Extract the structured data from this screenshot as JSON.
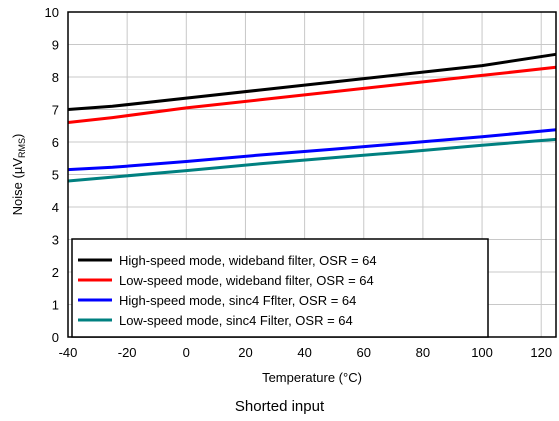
{
  "caption": "Shorted input",
  "chart_data": {
    "type": "line",
    "xlabel": "Temperature (°C)",
    "ylabel": {
      "prefix": "Noise (",
      "symbol": "µV",
      "subscript": "RMS",
      "suffix": ")"
    },
    "xlim": [
      -40,
      125
    ],
    "ylim": [
      0,
      10
    ],
    "xticks": [
      -40,
      -20,
      0,
      20,
      40,
      60,
      80,
      100,
      120
    ],
    "yticks": [
      0,
      1,
      2,
      3,
      4,
      5,
      6,
      7,
      8,
      9,
      10
    ],
    "grid": true,
    "legend_position": "bottom-left",
    "series": [
      {
        "name": "High-speed mode, wideband filter, OSR = 64",
        "color": "#000000",
        "x": [
          -40,
          -25,
          0,
          25,
          50,
          75,
          100,
          125
        ],
        "y": [
          7.0,
          7.1,
          7.35,
          7.6,
          7.85,
          8.1,
          8.35,
          8.7
        ]
      },
      {
        "name": "Low-speed mode, wideband filter, OSR = 64",
        "color": "#ff0000",
        "x": [
          -40,
          -25,
          0,
          25,
          50,
          75,
          100,
          125
        ],
        "y": [
          6.6,
          6.75,
          7.05,
          7.3,
          7.55,
          7.8,
          8.05,
          8.3
        ]
      },
      {
        "name": "High-speed mode, sinc4 Fflter, OSR = 64",
        "color": "#0000ff",
        "x": [
          -40,
          -25,
          0,
          25,
          50,
          75,
          100,
          125
        ],
        "y": [
          5.15,
          5.22,
          5.4,
          5.6,
          5.78,
          5.97,
          6.16,
          6.38
        ]
      },
      {
        "name": "Low-speed mode, sinc4 Filter, OSR = 64",
        "color": "#008080",
        "x": [
          -40,
          -25,
          0,
          25,
          50,
          75,
          100,
          125
        ],
        "y": [
          4.8,
          4.92,
          5.12,
          5.33,
          5.52,
          5.7,
          5.9,
          6.08
        ]
      }
    ]
  }
}
